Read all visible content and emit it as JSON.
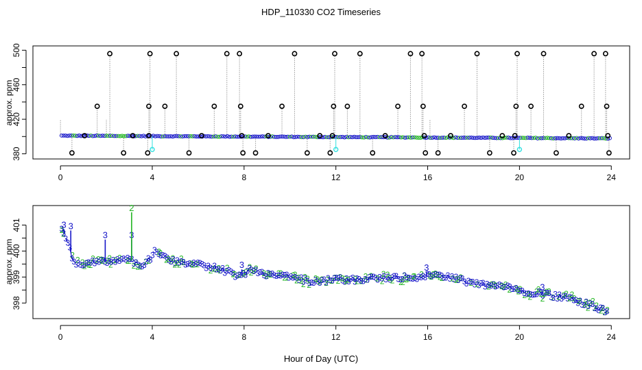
{
  "figure": {
    "title": "HDP_110330  CO2 Timeseries",
    "xlabel": "Hour of Day (UTC)"
  },
  "colors": {
    "black": "#000000",
    "blue": "#1414c8",
    "green": "#1fb41f",
    "cyan": "#30e0e0",
    "grey": "#9a9a9a"
  },
  "chart_data": [
    {
      "type": "scatter",
      "panel": "top",
      "ylabel": "approx. ppm",
      "xlim": [
        -1.2,
        24.8
      ],
      "ylim": [
        374,
        505
      ],
      "xticks": [
        0,
        4,
        8,
        12,
        16,
        20,
        24
      ],
      "yticks": [
        380,
        420,
        460,
        500
      ],
      "ytick_labels": [
        "380",
        "420",
        "460",
        "500"
      ],
      "grid": false,
      "legend": "none",
      "baseline": {
        "start": 401.0,
        "end": 397.8
      },
      "outliers": [
        {
          "x": 0.5,
          "y": 381
        },
        {
          "x": 1.05,
          "y": 401
        },
        {
          "x": 1.6,
          "y": 435
        },
        {
          "x": 2.15,
          "y": 496
        },
        {
          "x": 2.75,
          "y": 381
        },
        {
          "x": 3.15,
          "y": 401
        },
        {
          "x": 3.8,
          "y": 381
        },
        {
          "x": 3.85,
          "y": 435
        },
        {
          "x": 3.9,
          "y": 496
        },
        {
          "x": 3.85,
          "y": 401
        },
        {
          "x": 4.55,
          "y": 435
        },
        {
          "x": 5.05,
          "y": 496
        },
        {
          "x": 5.6,
          "y": 381
        },
        {
          "x": 6.15,
          "y": 401
        },
        {
          "x": 6.7,
          "y": 435
        },
        {
          "x": 7.25,
          "y": 496
        },
        {
          "x": 7.8,
          "y": 496
        },
        {
          "x": 7.85,
          "y": 435
        },
        {
          "x": 7.9,
          "y": 401
        },
        {
          "x": 7.95,
          "y": 381
        },
        {
          "x": 8.5,
          "y": 381
        },
        {
          "x": 9.05,
          "y": 401
        },
        {
          "x": 9.65,
          "y": 435
        },
        {
          "x": 10.2,
          "y": 496
        },
        {
          "x": 10.75,
          "y": 381
        },
        {
          "x": 11.3,
          "y": 401
        },
        {
          "x": 11.75,
          "y": 381
        },
        {
          "x": 11.85,
          "y": 401
        },
        {
          "x": 11.9,
          "y": 435
        },
        {
          "x": 11.95,
          "y": 496
        },
        {
          "x": 12.5,
          "y": 435
        },
        {
          "x": 13.05,
          "y": 496
        },
        {
          "x": 13.6,
          "y": 381
        },
        {
          "x": 14.15,
          "y": 401
        },
        {
          "x": 14.7,
          "y": 435
        },
        {
          "x": 15.25,
          "y": 496
        },
        {
          "x": 15.75,
          "y": 496
        },
        {
          "x": 15.8,
          "y": 435
        },
        {
          "x": 15.85,
          "y": 401
        },
        {
          "x": 15.9,
          "y": 381
        },
        {
          "x": 16.45,
          "y": 381
        },
        {
          "x": 17.0,
          "y": 401
        },
        {
          "x": 17.6,
          "y": 435
        },
        {
          "x": 18.15,
          "y": 496
        },
        {
          "x": 18.7,
          "y": 381
        },
        {
          "x": 19.25,
          "y": 401
        },
        {
          "x": 19.75,
          "y": 381
        },
        {
          "x": 19.8,
          "y": 401
        },
        {
          "x": 19.85,
          "y": 435
        },
        {
          "x": 19.9,
          "y": 496
        },
        {
          "x": 20.5,
          "y": 435
        },
        {
          "x": 21.05,
          "y": 496
        },
        {
          "x": 21.6,
          "y": 381
        },
        {
          "x": 22.15,
          "y": 401
        },
        {
          "x": 22.7,
          "y": 435
        },
        {
          "x": 23.25,
          "y": 496
        },
        {
          "x": 23.75,
          "y": 496
        },
        {
          "x": 23.8,
          "y": 435
        },
        {
          "x": 23.85,
          "y": 401
        },
        {
          "x": 23.9,
          "y": 381
        }
      ],
      "cyan_points": [
        {
          "x": 4.0,
          "y": 385
        },
        {
          "x": 12.0,
          "y": 385
        },
        {
          "x": 20.0,
          "y": 385
        }
      ]
    },
    {
      "type": "scatter",
      "panel": "bottom",
      "ylabel": "approx. ppm",
      "xlim": [
        -1.2,
        24.8
      ],
      "ylim": [
        397.4,
        401.75
      ],
      "xticks": [
        0,
        4,
        8,
        12,
        16,
        20,
        24
      ],
      "yticks": [
        398,
        399,
        400,
        401
      ],
      "ytick_labels": [
        "398",
        "399",
        "400",
        "401"
      ],
      "grid": false,
      "legend": "none",
      "series": [
        {
          "marker": "3",
          "color": "#1414c8"
        },
        {
          "marker": "2",
          "color": "#1fb41f"
        }
      ],
      "trend_x": [
        0.0,
        0.3,
        0.6,
        1.0,
        1.5,
        2.0,
        2.5,
        3.0,
        3.5,
        3.9,
        4.1,
        4.5,
        5.0,
        6.0,
        7.0,
        7.8,
        8.3,
        9.0,
        10.0,
        11.0,
        12.0,
        13.0,
        14.0,
        15.0,
        15.9,
        16.2,
        17.0,
        18.0,
        19.0,
        19.9,
        20.2,
        21.0,
        22.0,
        23.0,
        23.8
      ],
      "trend_y": [
        400.9,
        400.4,
        399.5,
        399.4,
        399.6,
        399.6,
        399.6,
        399.7,
        399.4,
        399.7,
        400.1,
        399.8,
        399.6,
        399.5,
        399.3,
        399.0,
        399.3,
        399.1,
        399.0,
        398.8,
        398.9,
        398.9,
        398.95,
        399.0,
        399.0,
        399.1,
        399.0,
        398.75,
        398.65,
        398.55,
        398.4,
        398.35,
        398.2,
        397.95,
        397.7
      ],
      "spikes": [
        {
          "x": 0.45,
          "y": 400.95,
          "marker": "3"
        },
        {
          "x": 0.15,
          "y": 401.0,
          "marker": "3"
        },
        {
          "x": 1.95,
          "y": 400.6,
          "marker": "3"
        },
        {
          "x": 3.1,
          "y": 400.6,
          "marker": "3"
        },
        {
          "x": 3.1,
          "y": 401.65,
          "marker": "2"
        },
        {
          "x": 7.9,
          "y": 399.45,
          "marker": "3"
        },
        {
          "x": 15.95,
          "y": 399.35,
          "marker": "3"
        },
        {
          "x": 21.0,
          "y": 398.6,
          "marker": "3"
        }
      ]
    }
  ]
}
